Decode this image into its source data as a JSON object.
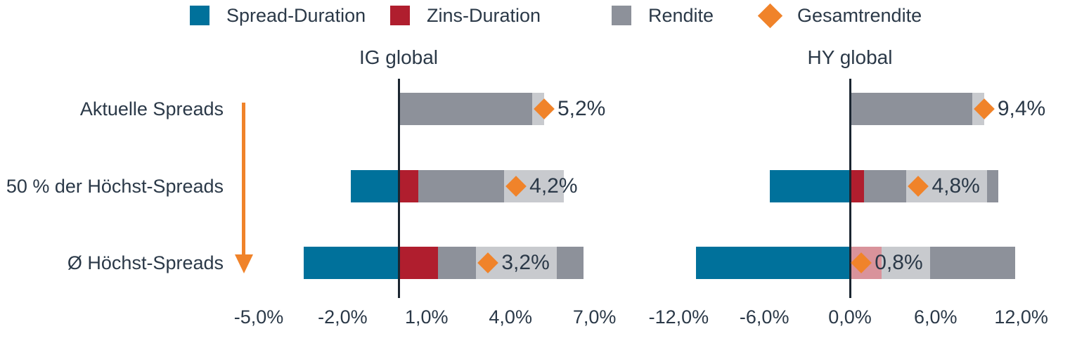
{
  "styles": {
    "text_color": "#2b3948",
    "axis_line_color": "#1b2631",
    "label_bg": "rgba(255,255,255,0.52)",
    "accent_orange": "#f0832a"
  },
  "legend": {
    "items": [
      {
        "label": "Spread-Duration",
        "marker": "square",
        "color": "#00719b"
      },
      {
        "label": "Zins-Duration",
        "marker": "square",
        "color": "#b01e2e"
      },
      {
        "label": "Rendite",
        "marker": "square",
        "color": "#8d919a"
      },
      {
        "label": "Gesamtrendite",
        "marker": "diamond",
        "color": "#f0832a"
      }
    ]
  },
  "scenario_arrow": {
    "direction": "down",
    "color": "#f0832a"
  },
  "chart_data": [
    {
      "type": "bar",
      "orientation": "horizontal",
      "stacked": true,
      "title": "IG global",
      "categories": [
        "Aktuelle Spreads",
        "50 % der Höchst-Spreads",
        "Ø Höchst-Spreads"
      ],
      "series": [
        {
          "name": "Spread-Duration",
          "color": "#00719b",
          "values": [
            0,
            -1.7,
            -3.4
          ]
        },
        {
          "name": "Zins-Duration",
          "color": "#b01e2e",
          "values": [
            0,
            0.7,
            1.4
          ]
        },
        {
          "name": "Rendite",
          "color": "#8d919a",
          "values": [
            5.2,
            5.2,
            5.2
          ]
        }
      ],
      "totals": {
        "name": "Gesamtrendite",
        "color": "#f0832a",
        "values": [
          5.2,
          4.2,
          3.2
        ],
        "labels": [
          "5,2%",
          "4,2%",
          "3,2%"
        ]
      },
      "xlim": [
        -5,
        7
      ],
      "xticks": [
        -5,
        -2,
        1,
        4,
        7
      ],
      "xtick_labels": [
        "-5,0%",
        "-2,0%",
        "1,0%",
        "4,0%",
        "7,0%"
      ],
      "grid": false,
      "zero_line": true,
      "legend_position": "top"
    },
    {
      "type": "bar",
      "orientation": "horizontal",
      "stacked": true,
      "title": "HY global",
      "categories": [
        "Aktuelle Spreads",
        "50 % der Höchst-Spreads",
        "Ø Höchst-Spreads"
      ],
      "series": [
        {
          "name": "Spread-Duration",
          "color": "#00719b",
          "values": [
            0,
            -5.6,
            -10.8
          ]
        },
        {
          "name": "Zins-Duration",
          "color": "#b01e2e",
          "values": [
            0,
            1.0,
            2.2
          ]
        },
        {
          "name": "Rendite",
          "color": "#8d919a",
          "values": [
            9.4,
            9.4,
            9.4
          ]
        }
      ],
      "totals": {
        "name": "Gesamtrendite",
        "color": "#f0832a",
        "values": [
          9.4,
          4.8,
          0.8
        ],
        "labels": [
          "9,4%",
          "4,8%",
          "0,8%"
        ]
      },
      "xlim": [
        -12,
        12
      ],
      "xticks": [
        -12,
        -6,
        0,
        6,
        12
      ],
      "xtick_labels": [
        "-12,0%",
        "-6,0%",
        "0,0%",
        "6,0%",
        "12,0%"
      ],
      "grid": false,
      "zero_line": true,
      "legend_position": "top"
    }
  ]
}
